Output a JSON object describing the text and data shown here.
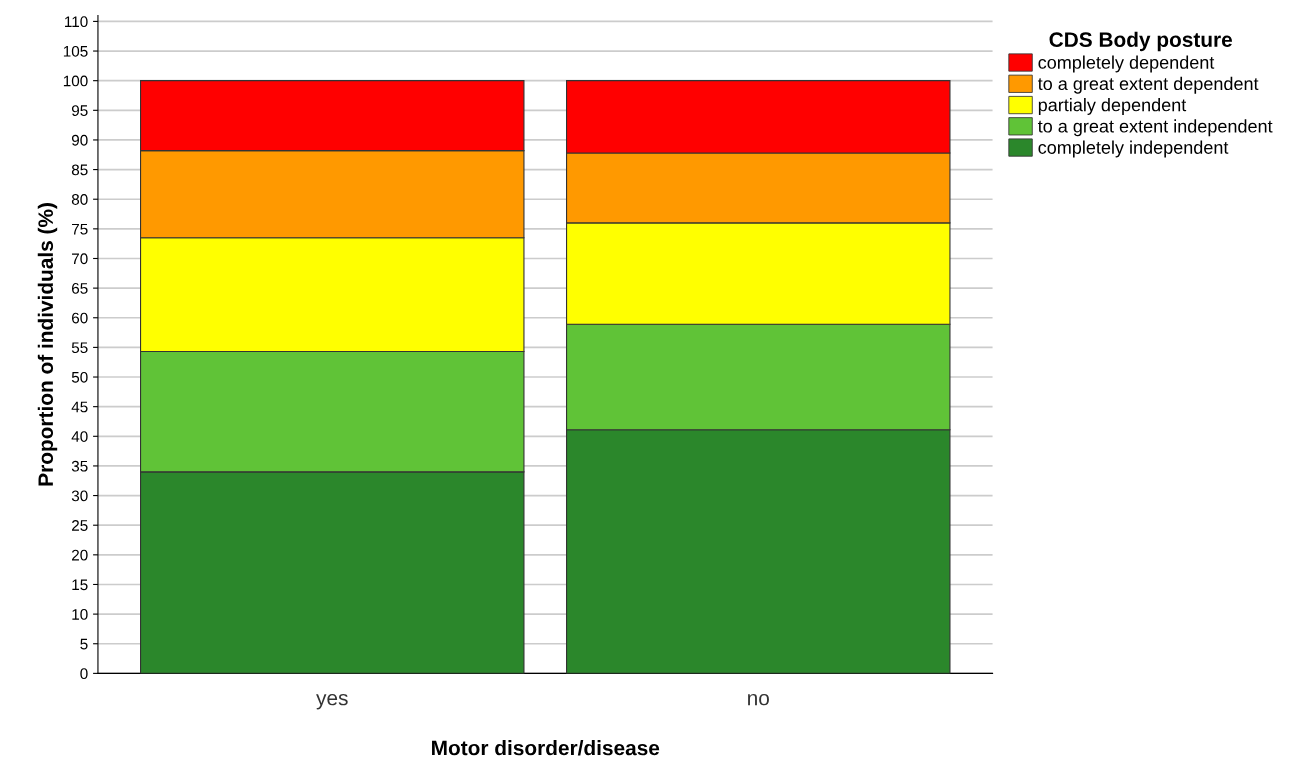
{
  "chart_data": {
    "type": "bar",
    "stacked": true,
    "xlabel": "Motor disorder/disease",
    "ylabel": "Proportion of individuals (%)",
    "legend_title": "CDS Body posture",
    "categories": [
      "yes",
      "no"
    ],
    "series": [
      {
        "name": "completely independent",
        "color": "#2b872b",
        "values": [
          34.0,
          41.1
        ]
      },
      {
        "name": "to a great extent independent",
        "color": "#60c337",
        "values": [
          20.3,
          17.8
        ]
      },
      {
        "name": "partialy dependent",
        "color": "#ffff00",
        "values": [
          19.2,
          17.1
        ]
      },
      {
        "name": "to a great extent dependent",
        "color": "#ff9900",
        "values": [
          14.7,
          11.8
        ]
      },
      {
        "name": "completely dependent",
        "color": "#ff0000",
        "values": [
          11.8,
          12.2
        ]
      }
    ],
    "ylim": [
      0,
      111
    ],
    "yticks": [
      0,
      5,
      10,
      15,
      20,
      25,
      30,
      35,
      40,
      45,
      50,
      55,
      60,
      65,
      70,
      75,
      80,
      85,
      90,
      95,
      100,
      105,
      110
    ],
    "grid": "y",
    "legend": "top right"
  }
}
